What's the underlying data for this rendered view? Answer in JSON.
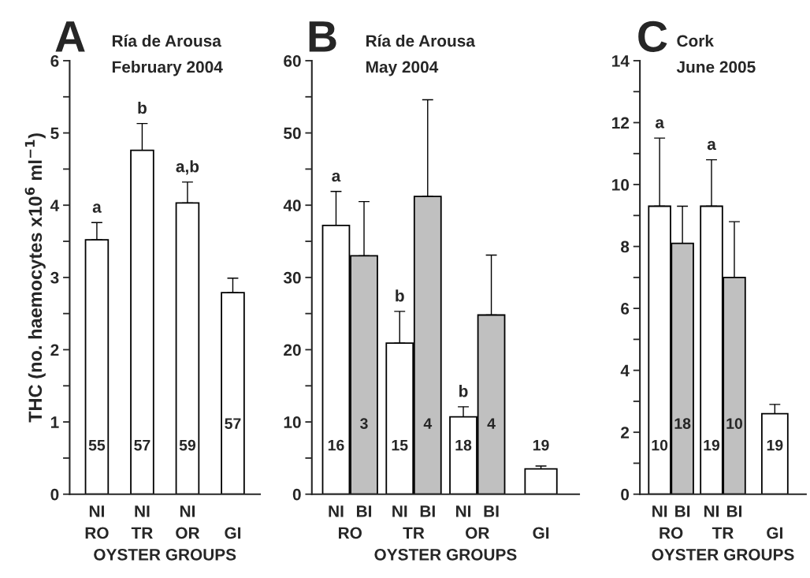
{
  "chart_data": [
    {
      "type": "bar",
      "title": "A",
      "subtitle": "Ría de Arousa\nFebruary 2004",
      "ylabel": "THC (no. haemocytes x10$^{6}$ ml$^{−1}$)",
      "xlabel": "OYSTER GROUPS",
      "categories": [
        "RO",
        "TR",
        "OR",
        "GI"
      ],
      "series": [
        {
          "name": "NI",
          "color": "#ffffff",
          "values": [
            3.52,
            4.76,
            4.03,
            null
          ],
          "errors": [
            [
              3.52,
              3.76
            ],
            [
              4.76,
              5.13
            ],
            [
              4.03,
              4.32
            ],
            null
          ]
        },
        {
          "color": "#ffffff",
          "values": [
            null,
            null,
            null,
            2.79
          ],
          "errors": [
            null,
            null,
            null,
            [
              2.79,
              2.99
            ]
          ]
        }
      ],
      "ylim": [
        0,
        6
      ],
      "yticks": [
        0,
        {
          "value": 0.5,
          "label": null
        },
        1,
        {
          "value": 1.5,
          "label": null
        },
        2,
        {
          "value": 2.5,
          "label": null
        },
        3,
        {
          "value": 3.5,
          "label": null
        },
        4,
        {
          "value": 4.5,
          "label": null
        },
        5,
        {
          "value": 5.5,
          "label": null
        },
        6
      ],
      "annotations": [
        "55",
        "57",
        "59",
        "57",
        "a",
        "b",
        "a,b"
      ],
      "grid": false,
      "legend": false
    },
    {
      "type": "bar",
      "title": "B",
      "subtitle": "Ría de Arousa\nMay 2004",
      "xlabel": "OYSTER GROUPS",
      "categories": [
        "RO",
        "TR",
        "OR",
        "GI"
      ],
      "series": [
        {
          "name": "NI",
          "color": "#ffffff",
          "values": [
            37.2,
            20.9,
            10.7,
            null
          ],
          "errors": [
            [
              37.2,
              41.9
            ],
            [
              20.9,
              25.3
            ],
            [
              10.7,
              12.1
            ],
            null
          ]
        },
        {
          "name": "BI",
          "color": "#c0c0c0",
          "values": [
            33.0,
            41.2,
            24.8,
            null
          ],
          "errors": [
            [
              33.0,
              40.5
            ],
            [
              41.2,
              54.6
            ],
            [
              24.8,
              33.1
            ],
            null
          ]
        },
        {
          "color": "#ffffff",
          "values": [
            null,
            null,
            null,
            3.5
          ],
          "errors": [
            null,
            null,
            null,
            [
              3.5,
              3.9
            ]
          ]
        }
      ],
      "ylim": [
        0,
        60
      ],
      "yticks": [
        0,
        {
          "value": 5,
          "label": null
        },
        10,
        {
          "value": 15,
          "label": null
        },
        20,
        {
          "value": 25,
          "label": null
        },
        30,
        {
          "value": 35,
          "label": null
        },
        40,
        {
          "value": 45,
          "label": null
        },
        50,
        {
          "value": 55,
          "label": null
        },
        60
      ],
      "annotations": [
        "16",
        "3",
        "15",
        "4",
        "18",
        "4",
        "19",
        "a",
        "b",
        "b"
      ],
      "grid": false,
      "legend": false
    },
    {
      "type": "bar",
      "title": "C",
      "subtitle": "Cork\nJune 2005",
      "xlabel": "OYSTER GROUPS",
      "categories": [
        "RO",
        "TR",
        "GI"
      ],
      "series": [
        {
          "name": "NI",
          "color": "#ffffff",
          "values": [
            9.3,
            9.3,
            null
          ],
          "errors": [
            [
              9.3,
              11.5
            ],
            [
              9.3,
              10.8
            ],
            null
          ]
        },
        {
          "name": "BI",
          "color": "#c0c0c0",
          "values": [
            8.1,
            7.0,
            null
          ],
          "errors": [
            [
              8.1,
              9.3
            ],
            [
              7.0,
              8.8
            ],
            null
          ]
        },
        {
          "color": "#ffffff",
          "values": [
            null,
            null,
            2.6
          ],
          "errors": [
            null,
            null,
            [
              2.6,
              2.9
            ]
          ]
        }
      ],
      "ylim": [
        0,
        14
      ],
      "yticks": [
        0,
        {
          "value": 1,
          "label": null
        },
        2,
        {
          "value": 3,
          "label": null
        },
        4,
        {
          "value": 5,
          "label": null
        },
        6,
        {
          "value": 7,
          "label": null
        },
        8,
        {
          "value": 9,
          "label": null
        },
        10,
        {
          "value": 11,
          "label": null
        },
        12,
        {
          "value": 13,
          "label": null
        },
        14
      ],
      "annotations": [
        "10",
        "18",
        "19",
        "10",
        "19",
        "a",
        "a"
      ],
      "grid": false,
      "legend": false
    }
  ]
}
